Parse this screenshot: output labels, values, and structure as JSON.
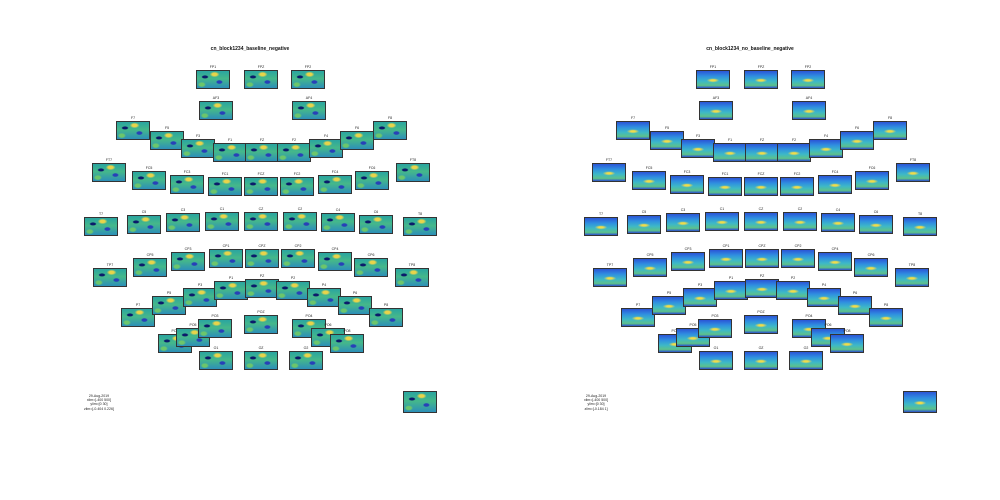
{
  "panels": [
    {
      "title": "cn_block1234_baseline_negative",
      "info": [
        "29-Aug-2019",
        "xlim=[-400 500]",
        "ylim=[0 30]",
        "zlim=[-0.404 0.226]"
      ]
    },
    {
      "title": "cn_block1234_no_baseline_negative",
      "info": [
        "29-Aug-2019",
        "xlim=[-400 500]",
        "ylim=[0 30]",
        "zlim=[-0.184 1]"
      ]
    }
  ],
  "channels": [
    "FP1",
    "FPZ",
    "FP2",
    "AF3",
    "AF4",
    "F7",
    "F5",
    "F3",
    "F1",
    "FZ",
    "F2",
    "F4",
    "F6",
    "F8",
    "FT7",
    "FC5",
    "FC3",
    "FC1",
    "FCZ",
    "FC2",
    "FC4",
    "FC6",
    "FT8",
    "T7",
    "C5",
    "C3",
    "C1",
    "CZ",
    "C2",
    "C4",
    "C6",
    "T8",
    "TP7",
    "CP5",
    "CP3",
    "CP1",
    "CPZ",
    "CP2",
    "CP4",
    "CP6",
    "TP8",
    "P7",
    "P5",
    "P3",
    "P1",
    "PZ",
    "P2",
    "P4",
    "P6",
    "P8",
    "PO7",
    "PO5",
    "PO3",
    "POZ",
    "PO4",
    "PO6",
    "PO8",
    "O1",
    "OZ",
    "O2"
  ]
}
